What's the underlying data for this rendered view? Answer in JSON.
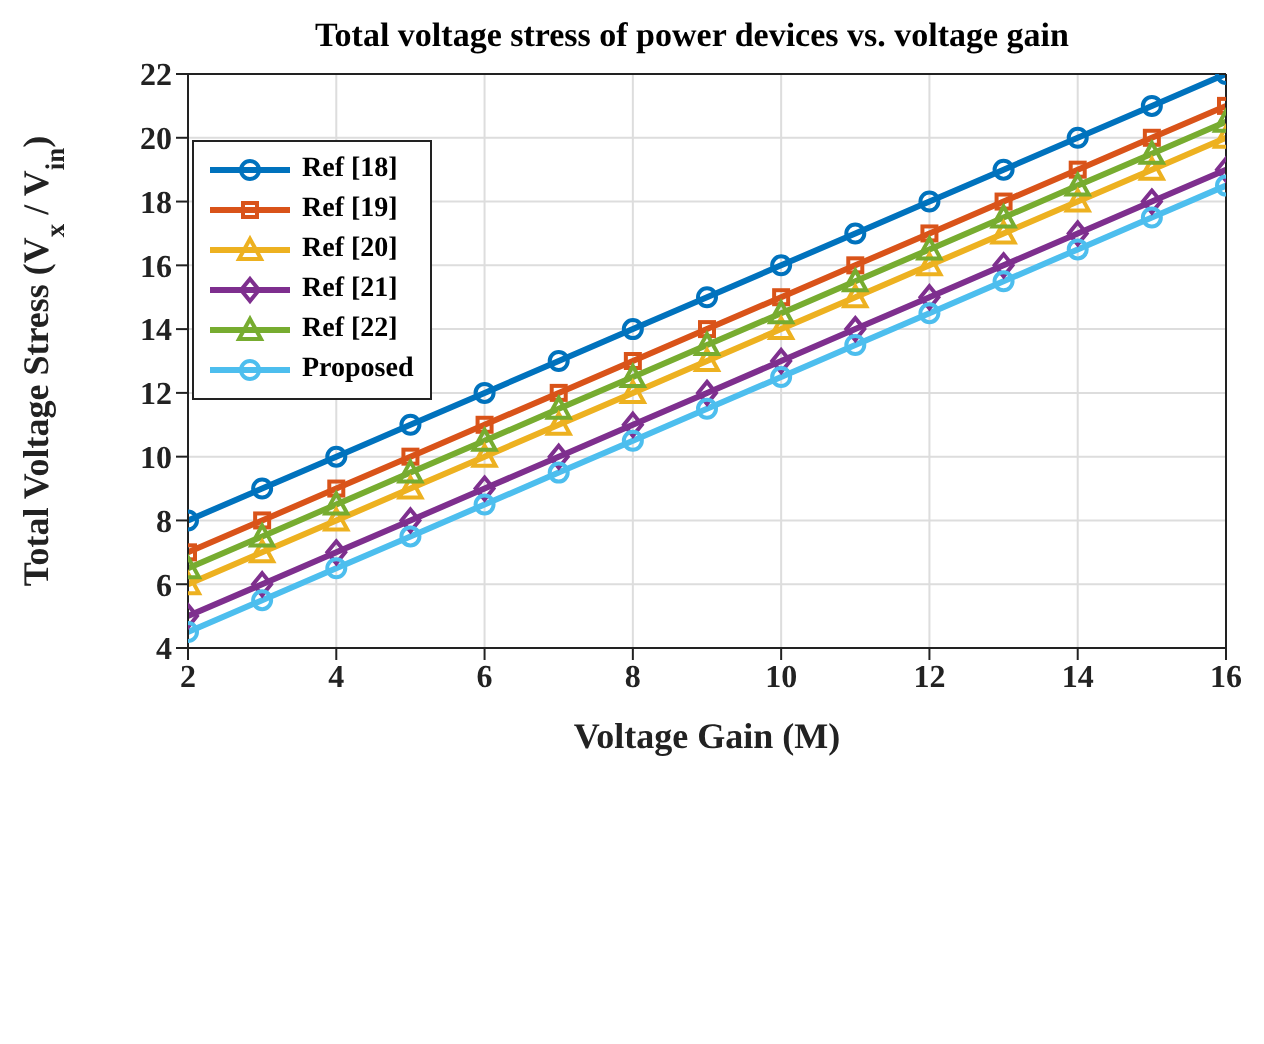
{
  "chart_data": {
    "type": "line",
    "title": "Total voltage stress of power devices vs. voltage gain",
    "xlabel": "Voltage Gain (M)",
    "ylabel": "Total Voltage Stress (V$_{x}$ / V$_{in}$)",
    "x": [
      2,
      3,
      4,
      5,
      6,
      7,
      8,
      9,
      10,
      11,
      12,
      13,
      14,
      15,
      16
    ],
    "xlim": [
      2,
      16
    ],
    "xticks": [
      2,
      4,
      6,
      8,
      10,
      12,
      14,
      16
    ],
    "ylim": [
      4,
      22
    ],
    "yticks": [
      4,
      6,
      8,
      10,
      12,
      14,
      16,
      18,
      20,
      22
    ],
    "grid": true,
    "legend": "top left",
    "line_style": "solid",
    "series": [
      {
        "name": "Ref [18]",
        "color": "#0072bd",
        "marker": "circle",
        "values": [
          8,
          9,
          10,
          11,
          12,
          13,
          14,
          15,
          16,
          17,
          18,
          19,
          20,
          21,
          22
        ]
      },
      {
        "name": "Ref [19]",
        "color": "#d95319",
        "marker": "square",
        "values": [
          7,
          8,
          9,
          10,
          11,
          12,
          13,
          14,
          15,
          16,
          17,
          18,
          19,
          20,
          21
        ]
      },
      {
        "name": "Ref [20]",
        "color": "#edb120",
        "marker": "triangle",
        "values": [
          6,
          7,
          8,
          9,
          10,
          11,
          12,
          13,
          14,
          15,
          16,
          17,
          18,
          19,
          20
        ]
      },
      {
        "name": "Ref [21]",
        "color": "#7e2f8e",
        "marker": "diamond",
        "values": [
          5,
          6,
          7,
          8,
          9,
          10,
          11,
          12,
          13,
          14,
          15,
          16,
          17,
          18,
          19
        ]
      },
      {
        "name": "Ref [22]",
        "color": "#77ac30",
        "marker": "triangle",
        "values": [
          6.5,
          7.5,
          8.5,
          9.5,
          10.5,
          11.5,
          12.5,
          13.5,
          14.5,
          15.5,
          16.5,
          17.5,
          18.5,
          19.5,
          20.5
        ]
      },
      {
        "name": "Proposed",
        "color": "#4dbeee",
        "marker": "circle",
        "values": [
          4.5,
          5.5,
          6.5,
          7.5,
          8.5,
          9.5,
          10.5,
          11.5,
          12.5,
          13.5,
          14.5,
          15.5,
          16.5,
          17.5,
          18.5
        ]
      }
    ]
  }
}
